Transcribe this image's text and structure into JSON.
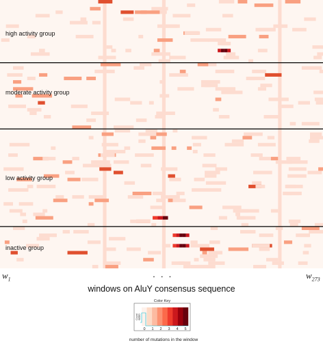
{
  "chart_data": {
    "type": "heatmap",
    "title": "",
    "xlabel": "windows on AluY consensus sequence",
    "x_start_label": "w",
    "x_start_sub": "1",
    "x_end_label": "w",
    "x_end_sub": "273",
    "x_ellipsis": ". . .",
    "n_windows": 273,
    "value_range": [
      0,
      5
    ],
    "groups": [
      {
        "name": "high activity group",
        "rows": 18
      },
      {
        "name": "moderate activity group",
        "rows": 19
      },
      {
        "name": "low activity group",
        "rows": 28
      },
      {
        "name": "inactive group",
        "rows": 12
      }
    ],
    "dense_columns": [
      {
        "window": 88,
        "value": 1
      },
      {
        "window": 138,
        "value": 1
      },
      {
        "window": 236,
        "value": 1
      }
    ],
    "highlight_cells": [
      {
        "group": "high activity group",
        "row": 14,
        "windows": [
          185,
          195
        ],
        "values": [
          4,
          5,
          5,
          4
        ]
      },
      {
        "group": "inactive group",
        "row": 2,
        "windows": [
          147,
          160
        ],
        "values": [
          3,
          4,
          5,
          5,
          4
        ]
      },
      {
        "group": "inactive group",
        "row": 5,
        "windows": [
          147,
          160
        ],
        "values": [
          3,
          4,
          5,
          5,
          4
        ]
      },
      {
        "group": "low activity group",
        "row": 25,
        "windows": [
          130,
          142
        ],
        "values": [
          3,
          4,
          5
        ]
      }
    ],
    "color_key": {
      "title": "Color Key",
      "xlabel": "number of mutations in the window",
      "ylabel": "Count",
      "ytick": "6000",
      "ticks": [
        "0",
        "1",
        "2",
        "3",
        "4",
        "5"
      ],
      "colors": [
        "#fef2ec",
        "#fddbc7",
        "#fcbba1",
        "#fc9272",
        "#fb6a4a",
        "#ef3b2c",
        "#cb181d",
        "#99000d",
        "#67000d"
      ]
    },
    "colors": {
      "background": "#fef6f1",
      "light": "#fddcd0",
      "mid": "#f9a081",
      "strong": "#e0502f",
      "dark": "#7a0a0a",
      "separator": "#000000"
    }
  }
}
